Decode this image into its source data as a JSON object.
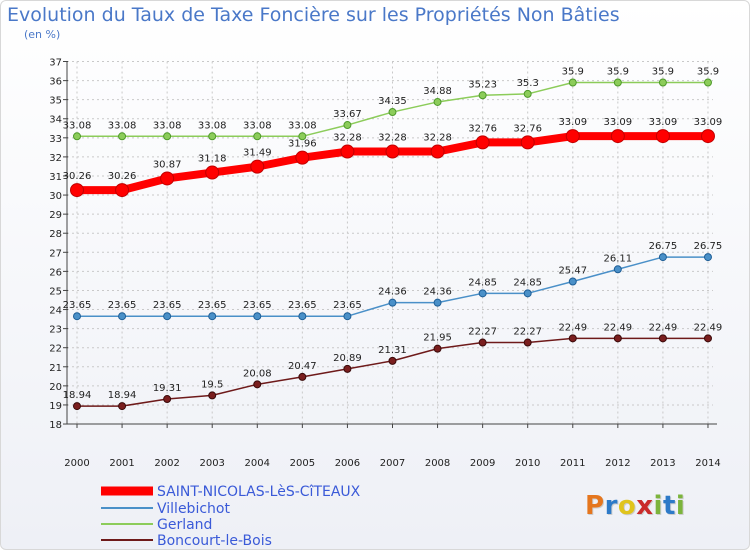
{
  "page": {
    "title": "Evolution du Taux de Taxe Foncière sur les Propriétés Non Bâties",
    "unit": "(en %)",
    "logo": "Proxiti"
  },
  "colors": {
    "title": "#4a78c8",
    "grid": "#c9c9c9",
    "saint_nicolas": "#ff0000",
    "villebichot": "#4a90c8",
    "gerland": "#8ccc5a",
    "boncourt": "#6e1a1a",
    "logo_p": "#e5761e",
    "logo_r": "#2d7ac8",
    "logo_o": "#e0c41c",
    "logo_x": "#ca2a2a",
    "logo_i": "#7cb43c",
    "logo_t": "#2d7ac8"
  },
  "chart_data": {
    "type": "line",
    "title": "Evolution du Taux de Taxe Foncière sur les Propriétés Non Bâties",
    "ylabel": "(en %)",
    "xlabel": "",
    "x": [
      "2000",
      "2001",
      "2002",
      "2003",
      "2004",
      "2005",
      "2006",
      "2007",
      "2008",
      "2009",
      "2010",
      "2011",
      "2012",
      "2013",
      "2014"
    ],
    "ylim": [
      18,
      37
    ],
    "yticks": [
      18,
      19,
      20,
      21,
      22,
      23,
      24,
      25,
      26,
      27,
      28,
      29,
      30,
      31,
      32,
      33,
      34,
      35,
      36,
      37
    ],
    "grid": true,
    "legend": "bottom-left",
    "series": [
      {
        "name": "SAINT-NICOLAS-LèS-CîTEAUX",
        "key": "saint_nicolas",
        "values": [
          30.26,
          30.26,
          30.87,
          31.18,
          31.49,
          31.96,
          32.28,
          32.28,
          32.28,
          32.76,
          32.76,
          33.09,
          33.09,
          33.09,
          33.09
        ],
        "labels": [
          "30.26",
          "30.26",
          "30.87",
          "31.18",
          "31.49",
          "31.96",
          "32.28",
          "32.28",
          "32.28",
          "32.76",
          "32.76",
          "33.09",
          "33.09",
          "33.09",
          "33.09"
        ]
      },
      {
        "name": "Villebichot",
        "key": "villebichot",
        "values": [
          23.65,
          23.65,
          23.65,
          23.65,
          23.65,
          23.65,
          23.65,
          24.36,
          24.36,
          24.85,
          24.85,
          25.47,
          26.11,
          26.75,
          26.75
        ],
        "labels": [
          "23.65",
          "23.65",
          "23.65",
          "23.65",
          "23.65",
          "23.65",
          "23.65",
          "24.36",
          "24.36",
          "24.85",
          "24.85",
          "25.47",
          "26.11",
          "26.75",
          "26.75"
        ]
      },
      {
        "name": "Gerland",
        "key": "gerland",
        "values": [
          33.08,
          33.08,
          33.08,
          33.08,
          33.08,
          33.08,
          33.67,
          34.35,
          34.88,
          35.23,
          35.3,
          35.9,
          35.9,
          35.9,
          35.9
        ],
        "labels": [
          "33.08",
          "33.08",
          "33.08",
          "33.08",
          "33.08",
          "33.08",
          "33.67",
          "34.35",
          "34.88",
          "35.23",
          "35.3",
          "35.9",
          "35.9",
          "35.9",
          "35.9"
        ]
      },
      {
        "name": "Boncourt-le-Bois",
        "key": "boncourt",
        "values": [
          18.94,
          18.94,
          19.31,
          19.5,
          20.08,
          20.47,
          20.89,
          21.31,
          21.95,
          22.27,
          22.27,
          22.49,
          22.49,
          22.49,
          22.49
        ],
        "labels": [
          "18.94",
          "18.94",
          "19.31",
          "19.5",
          "20.08",
          "20.47",
          "20.89",
          "21.31",
          "21.95",
          "22.27",
          "22.27",
          "22.49",
          "22.49",
          "22.49",
          "22.49"
        ]
      }
    ]
  }
}
